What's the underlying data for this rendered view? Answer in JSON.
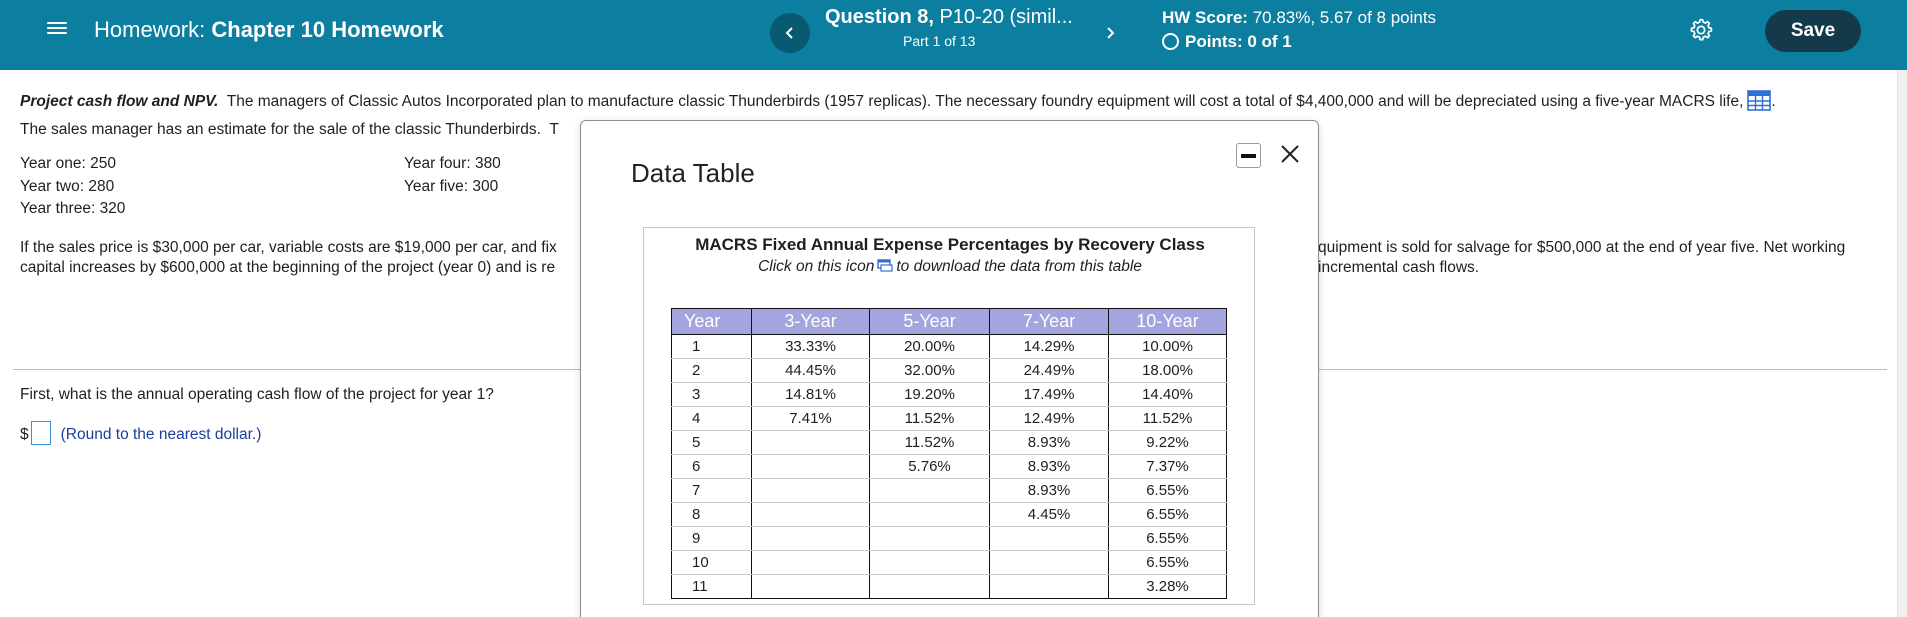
{
  "header": {
    "homework_label": "Homework:",
    "homework_title": "Chapter 10 Homework",
    "question_label": "Question 8,",
    "question_title": "P10-20 (simil...",
    "part": "Part 1 of 13",
    "hw_score_label": "HW Score:",
    "hw_score_value": "70.83%, 5.67 of 8 points",
    "points_label": "Points:",
    "points_value": "0 of 1",
    "save_label": "Save",
    "icons": {
      "menu": "hamburger-menu-icon",
      "prev": "chevron-left-icon",
      "next": "chevron-right-icon",
      "settings": "gear-icon"
    },
    "colors": {
      "bar": "#0c7fa0",
      "save": "#13394a"
    }
  },
  "problem": {
    "bold_title": "Project cash flow and NPV.",
    "line1": "The managers of Classic Autos Incorporated plan to manufacture classic Thunderbirds (1957 replicas).  The necessary foundry equipment will cost a total of $4,400,000 and will be depreciated using a five-year MACRS life,",
    "line1_end": ".",
    "line2": "The sales manager has an estimate for the sale of the classic Thunderbirds.",
    "line2_tail": "T"
  },
  "sales": {
    "year_one": "Year one:  250",
    "year_two": "Year two:  280",
    "year_three": "Year three:  320",
    "year_four": "Year four:  380",
    "year_five": "Year five:  300"
  },
  "para2": {
    "left_line1": "If the sales price is $30,000 per car, variable costs are $19,000 per car, and fix",
    "left_line2": "capital increases by $600,000 at the beginning of the project (year 0) and is re",
    "right_line1": "quipment is sold for salvage for $500,000 at the end of year five.  Net working",
    "right_line2": "incremental cash flows."
  },
  "question": {
    "text": "First, what is the annual operating cash flow of the project for year 1?",
    "currency": "$",
    "answer_value": "",
    "hint": "(Round to the nearest dollar.)"
  },
  "modal": {
    "title": "Data Table",
    "table_title": "MACRS Fixed Annual Expense Percentages by Recovery Class",
    "sub_before": "Click on this icon",
    "sub_after": "to download the data from this table",
    "columns": [
      "Year",
      "3-Year",
      "5-Year",
      "7-Year",
      "10-Year"
    ],
    "header_color": "#a4a4de",
    "rows": [
      [
        "1",
        "33.33%",
        "20.00%",
        "14.29%",
        "10.00%"
      ],
      [
        "2",
        "44.45%",
        "32.00%",
        "24.49%",
        "18.00%"
      ],
      [
        "3",
        "14.81%",
        "19.20%",
        "17.49%",
        "14.40%"
      ],
      [
        "4",
        "7.41%",
        "11.52%",
        "12.49%",
        "11.52%"
      ],
      [
        "5",
        "",
        "11.52%",
        "8.93%",
        "9.22%"
      ],
      [
        "6",
        "",
        "5.76%",
        "8.93%",
        "7.37%"
      ],
      [
        "7",
        "",
        "",
        "8.93%",
        "6.55%"
      ],
      [
        "8",
        "",
        "",
        "4.45%",
        "6.55%"
      ],
      [
        "9",
        "",
        "",
        "",
        "6.55%"
      ],
      [
        "10",
        "",
        "",
        "",
        "6.55%"
      ],
      [
        "11",
        "",
        "",
        "",
        "3.28%"
      ]
    ]
  }
}
